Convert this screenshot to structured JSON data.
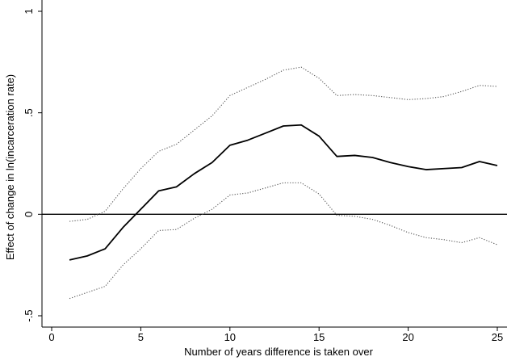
{
  "chart_data": {
    "type": "line",
    "title": "",
    "xlabel": "Number of years difference is taken over",
    "ylabel": "Effect of change in ln(incarceration rate)",
    "xlim": [
      0,
      25
    ],
    "ylim": [
      -0.5,
      1
    ],
    "x_ticks": [
      0,
      5,
      10,
      15,
      20,
      25
    ],
    "x_tick_labels": [
      "0",
      "5",
      "10",
      "15",
      "20",
      "25"
    ],
    "y_ticks": [
      -0.5,
      0,
      0.5,
      1
    ],
    "y_tick_labels": [
      "-.5",
      "0",
      ".5",
      "1"
    ],
    "grid": false,
    "legend": "none",
    "reference_line": {
      "y": 0
    },
    "x": [
      1,
      2,
      3,
      4,
      5,
      6,
      7,
      8,
      9,
      10,
      11,
      12,
      13,
      14,
      15,
      16,
      17,
      18,
      19,
      20,
      21,
      22,
      23,
      24,
      25
    ],
    "series": [
      {
        "style": "solid",
        "color": "#000000",
        "values": [
          -0.225,
          -0.205,
          -0.17,
          -0.065,
          0.025,
          0.115,
          0.135,
          0.2,
          0.255,
          0.34,
          0.365,
          0.4,
          0.435,
          0.44,
          0.385,
          0.285,
          0.29,
          0.28,
          0.255,
          0.235,
          0.22,
          0.225,
          0.23,
          0.26,
          0.24
        ]
      },
      {
        "style": "dotted",
        "color": "#555555",
        "values": [
          -0.035,
          -0.025,
          0.015,
          0.125,
          0.225,
          0.31,
          0.345,
          0.415,
          0.485,
          0.585,
          0.625,
          0.665,
          0.71,
          0.725,
          0.67,
          0.585,
          0.59,
          0.585,
          0.575,
          0.565,
          0.57,
          0.58,
          0.605,
          0.635,
          0.63
        ]
      },
      {
        "style": "dotted",
        "color": "#555555",
        "values": [
          -0.415,
          -0.385,
          -0.355,
          -0.25,
          -0.17,
          -0.08,
          -0.075,
          -0.02,
          0.025,
          0.095,
          0.105,
          0.13,
          0.155,
          0.155,
          0.1,
          -0.005,
          -0.01,
          -0.025,
          -0.055,
          -0.09,
          -0.115,
          -0.125,
          -0.14,
          -0.115,
          -0.15
        ]
      }
    ]
  }
}
